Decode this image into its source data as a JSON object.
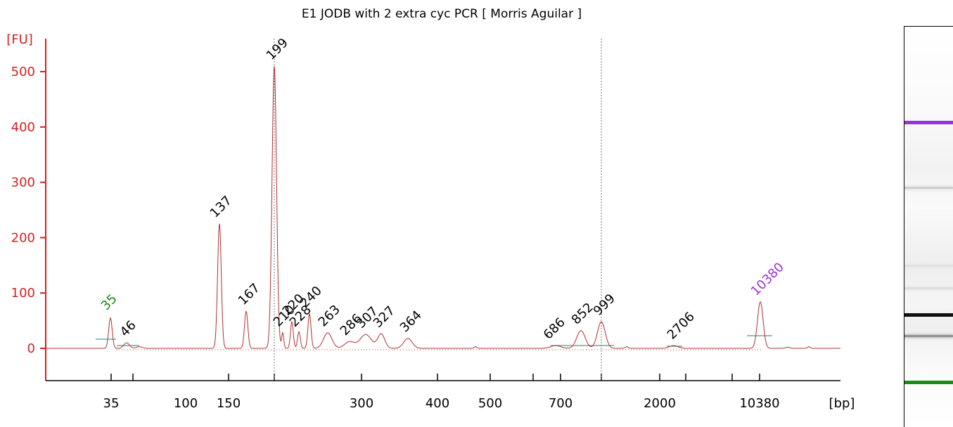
{
  "chart_data": {
    "type": "line",
    "title": "E1 JODB with 2 extra cyc PCR  [ Morris Aguilar ]",
    "ylabel": "[FU]",
    "xlabel": "[bp]",
    "ylim": [
      -50,
      560
    ],
    "y_ticks": [
      "0",
      "100",
      "200",
      "300",
      "400",
      "500"
    ],
    "x_tick_labels": [
      "35",
      "100",
      "150",
      "300",
      "400",
      "500",
      "700",
      "2000",
      "10380"
    ],
    "series": [
      {
        "peaks": [
          {
            "label": "35",
            "value": 55,
            "color": "#1a8a1a"
          },
          {
            "label": "46",
            "value": 10
          },
          {
            "label": "137",
            "value": 225
          },
          {
            "label": "167",
            "value": 67
          },
          {
            "label": "199",
            "value": 510
          },
          {
            "label": "210",
            "value": 28
          },
          {
            "label": "220",
            "value": 48
          },
          {
            "label": "228",
            "value": 30
          },
          {
            "label": "240",
            "value": 62
          },
          {
            "label": "263",
            "value": 28
          },
          {
            "label": "286",
            "value": 12
          },
          {
            "label": "307",
            "value": 25
          },
          {
            "label": "327",
            "value": 26
          },
          {
            "label": "364",
            "value": 18
          },
          {
            "label": "686",
            "value": 5
          },
          {
            "label": "852",
            "value": 32
          },
          {
            "label": "999",
            "value": 48
          },
          {
            "label": "2706",
            "value": 5
          },
          {
            "label": "10380",
            "value": 84,
            "color": "#9b30e0"
          }
        ]
      }
    ]
  },
  "colors": {
    "axis": "#d42020",
    "trace": "#b03030",
    "lower_marker": "#1a8a1a",
    "upper_marker": "#9b30e0"
  },
  "gel": {
    "bands": [
      {
        "level": 0.235,
        "color": "#9b30e0",
        "strength": 1.0
      },
      {
        "level": 0.4,
        "color": "#888888",
        "strength": 0.35
      },
      {
        "level": 0.595,
        "color": "#bbbbbb",
        "strength": 0.25
      },
      {
        "level": 0.65,
        "color": "#b0b0b0",
        "strength": 0.3
      },
      {
        "level": 0.715,
        "color": "#111111",
        "strength": 1.0
      },
      {
        "level": 0.77,
        "color": "#555555",
        "strength": 0.6
      },
      {
        "level": 0.885,
        "color": "#1a8a1a",
        "strength": 1.0
      }
    ]
  }
}
